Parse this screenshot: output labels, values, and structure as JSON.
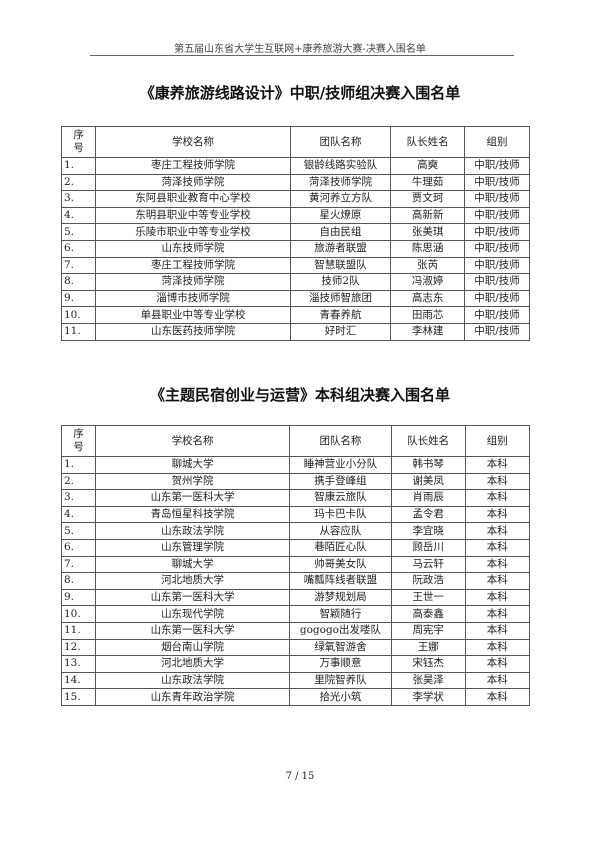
{
  "running_header": "第五届山东省大学生互联网+康养旅游大赛-决赛入围名单",
  "columns": [
    "序\n号",
    "学校名称",
    "团队名称",
    "队长姓名",
    "组别"
  ],
  "section1": {
    "title": "《康养旅游线路设计》中职/技师组决赛入围名单",
    "rows": [
      [
        "1.",
        "枣庄工程技师学院",
        "银龄线路实验队",
        "高奭",
        "中职/技师"
      ],
      [
        "2.",
        "菏泽技师学院",
        "菏泽技师学院",
        "牛理茹",
        "中职/技师"
      ],
      [
        "3.",
        "东阿县职业教育中心学校",
        "黄河养立方队",
        "贾文珂",
        "中职/技师"
      ],
      [
        "4.",
        "东明县职业中等专业学校",
        "星火燎原",
        "高新新",
        "中职/技师"
      ],
      [
        "5.",
        "乐陵市职业中等专业学校",
        "自由民组",
        "张美琪",
        "中职/技师"
      ],
      [
        "6.",
        "山东技师学院",
        "旅游者联盟",
        "陈思涵",
        "中职/技师"
      ],
      [
        "7.",
        "枣庄工程技师学院",
        "智慧联盟队",
        "张芮",
        "中职/技师"
      ],
      [
        "8.",
        "菏泽技师学院",
        "技师2队",
        "冯淑婷",
        "中职/技师"
      ],
      [
        "9.",
        "淄博市技师学院",
        "淄技师智旅团",
        "高志东",
        "中职/技师"
      ],
      [
        "10.",
        "单县职业中等专业学校",
        "青春养航",
        "田雨芯",
        "中职/技师"
      ],
      [
        "11.",
        "山东医药技师学院",
        "好时汇",
        "李林建",
        "中职/技师"
      ]
    ]
  },
  "section2": {
    "title": "《主题民宿创业与运营》本科组决赛入围名单",
    "rows": [
      [
        "1.",
        "聊城大学",
        "睡神营业小分队",
        "韩书琴",
        "本科"
      ],
      [
        "2.",
        "贺州学院",
        "携手登峰组",
        "谢美凤",
        "本科"
      ],
      [
        "3.",
        "山东第一医科大学",
        "智康云旅队",
        "肖雨辰",
        "本科"
      ],
      [
        "4.",
        "青岛恒星科技学院",
        "玛卡巴卡队",
        "孟令君",
        "本科"
      ],
      [
        "5.",
        "山东政法学院",
        "从容应队",
        "李宜晓",
        "本科"
      ],
      [
        "6.",
        "山东管理学院",
        "巷陌匠心队",
        "顾岳川",
        "本科"
      ],
      [
        "7.",
        "聊城大学",
        "帅哥美女队",
        "马云轩",
        "本科"
      ],
      [
        "8.",
        "河北地质大学",
        "嘴瓢阵线者联盟",
        "阮政浩",
        "本科"
      ],
      [
        "9.",
        "山东第一医科大学",
        "游梦规划局",
        "王世一",
        "本科"
      ],
      [
        "10.",
        "山东现代学院",
        "智颖随行",
        "高泰鑫",
        "本科"
      ],
      [
        "11.",
        "山东第一医科大学",
        "gogogo出发喽队",
        "周宪宇",
        "本科"
      ],
      [
        "12.",
        "烟台南山学院",
        "绿氧智游舍",
        "王娜",
        "本科"
      ],
      [
        "13.",
        "河北地质大学",
        "万事顺意",
        "宋钰杰",
        "本科"
      ],
      [
        "14.",
        "山东政法学院",
        "里院智养队",
        "张昊泽",
        "本科"
      ],
      [
        "15.",
        "山东青年政治学院",
        "拾光小筑",
        "李学状",
        "本科"
      ]
    ]
  },
  "page_number": "7 / 15"
}
